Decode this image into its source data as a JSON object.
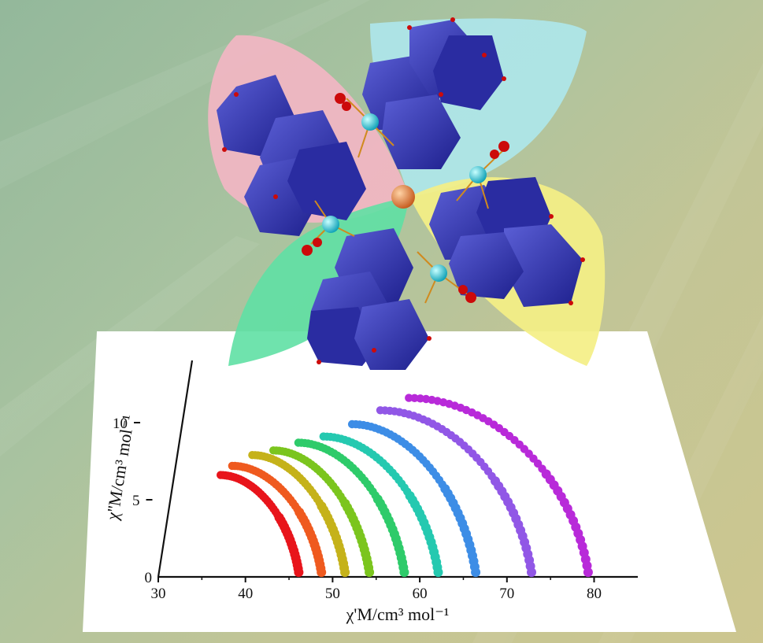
{
  "figure": {
    "description_graphic": "polyoxometalate-cluster-illustration"
  },
  "chart_data": {
    "type": "line",
    "xlabel": "χ'M/cm³ mol⁻¹",
    "ylabel": "χ''M/cm³ mol⁻¹",
    "xlim": [
      30,
      80
    ],
    "ylim": [
      0,
      12
    ],
    "x_ticks": [
      "30",
      "40",
      "50",
      "60",
      "70",
      "80"
    ],
    "y_ticks": [
      "0",
      "5",
      "10"
    ],
    "grid": false,
    "legend": "none",
    "series": [
      {
        "color": "#e8141b",
        "x0": 39.0,
        "ymax": 6.6,
        "x1": 46.2
      },
      {
        "color": "#ef5a1f",
        "x0": 40.5,
        "ymax": 7.2,
        "x1": 48.8
      },
      {
        "color": "#c5b21a",
        "x0": 43.0,
        "ymax": 7.9,
        "x1": 51.5
      },
      {
        "color": "#7bc51e",
        "x0": 45.5,
        "ymax": 8.2,
        "x1": 54.3
      },
      {
        "color": "#2ecb6a",
        "x0": 48.5,
        "ymax": 8.7,
        "x1": 58.3
      },
      {
        "color": "#25c9b0",
        "x0": 51.5,
        "ymax": 9.1,
        "x1": 62.2
      },
      {
        "color": "#3d8de6",
        "x0": 55.0,
        "ymax": 9.9,
        "x1": 66.5
      },
      {
        "color": "#9157e6",
        "x0": 58.5,
        "ymax": 10.8,
        "x1": 72.9
      },
      {
        "color": "#b82ad9",
        "x0": 62.0,
        "ymax": 11.6,
        "x1": 79.4
      }
    ]
  }
}
